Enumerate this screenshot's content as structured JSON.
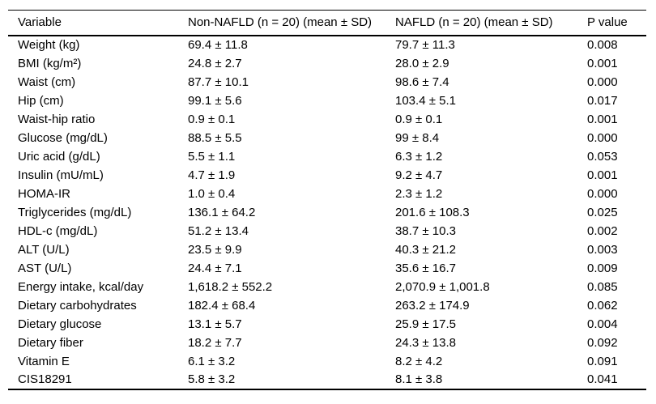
{
  "table": {
    "columns": [
      "Variable",
      "Non-NAFLD (n = 20) (mean ± SD)",
      "NAFLD (n = 20) (mean ± SD)",
      "P value"
    ],
    "rows": [
      {
        "variable": "Weight (kg)",
        "non_nafld": "69.4 ± 11.8",
        "nafld": "79.7 ± 11.3",
        "p_value": "0.008"
      },
      {
        "variable": "BMI (kg/m²)",
        "non_nafld": "24.8 ± 2.7",
        "nafld": "28.0 ± 2.9",
        "p_value": "0.001"
      },
      {
        "variable": "Waist (cm)",
        "non_nafld": "87.7 ± 10.1",
        "nafld": "98.6 ± 7.4",
        "p_value": "0.000"
      },
      {
        "variable": "Hip (cm)",
        "non_nafld": "99.1 ± 5.6",
        "nafld": "103.4 ± 5.1",
        "p_value": "0.017"
      },
      {
        "variable": "Waist-hip ratio",
        "non_nafld": "0.9 ± 0.1",
        "nafld": "0.9 ± 0.1",
        "p_value": "0.001"
      },
      {
        "variable": "Glucose (mg/dL)",
        "non_nafld": "88.5 ± 5.5",
        "nafld": "99 ± 8.4",
        "p_value": "0.000"
      },
      {
        "variable": "Uric acid (g/dL)",
        "non_nafld": "5.5 ± 1.1",
        "nafld": "6.3 ± 1.2",
        "p_value": "0.053"
      },
      {
        "variable": "Insulin (mU/mL)",
        "non_nafld": "4.7 ± 1.9",
        "nafld": "9.2 ± 4.7",
        "p_value": "0.001"
      },
      {
        "variable": "HOMA-IR",
        "non_nafld": "1.0 ± 0.4",
        "nafld": "2.3 ± 1.2",
        "p_value": "0.000"
      },
      {
        "variable": "Triglycerides (mg/dL)",
        "non_nafld": "136.1 ± 64.2",
        "nafld": "201.6 ± 108.3",
        "p_value": "0.025"
      },
      {
        "variable": "HDL-c (mg/dL)",
        "non_nafld": "51.2 ± 13.4",
        "nafld": "38.7 ± 10.3",
        "p_value": "0.002"
      },
      {
        "variable": "ALT (U/L)",
        "non_nafld": "23.5 ± 9.9",
        "nafld": "40.3 ± 21.2",
        "p_value": "0.003"
      },
      {
        "variable": "AST (U/L)",
        "non_nafld": "24.4 ± 7.1",
        "nafld": "35.6 ± 16.7",
        "p_value": "0.009"
      },
      {
        "variable": "Energy intake, kcal/day",
        "non_nafld": "1,618.2 ± 552.2",
        "nafld": "2,070.9 ± 1,001.8",
        "p_value": "0.085"
      },
      {
        "variable": "Dietary carbohydrates",
        "non_nafld": "182.4 ± 68.4",
        "nafld": "263.2 ± 174.9",
        "p_value": "0.062"
      },
      {
        "variable": "Dietary glucose",
        "non_nafld": "13.1 ± 5.7",
        "nafld": "25.9 ± 17.5",
        "p_value": "0.004"
      },
      {
        "variable": "Dietary fiber",
        "non_nafld": "18.2 ± 7.7",
        "nafld": "24.3 ± 13.8",
        "p_value": "0.092"
      },
      {
        "variable": "Vitamin E",
        "non_nafld": "6.1 ± 3.2",
        "nafld": "8.2 ± 4.2",
        "p_value": "0.091"
      },
      {
        "variable": "CIS18291",
        "non_nafld": "5.8 ± 3.2",
        "nafld": "8.1 ± 3.8",
        "p_value": "0.041"
      }
    ]
  }
}
